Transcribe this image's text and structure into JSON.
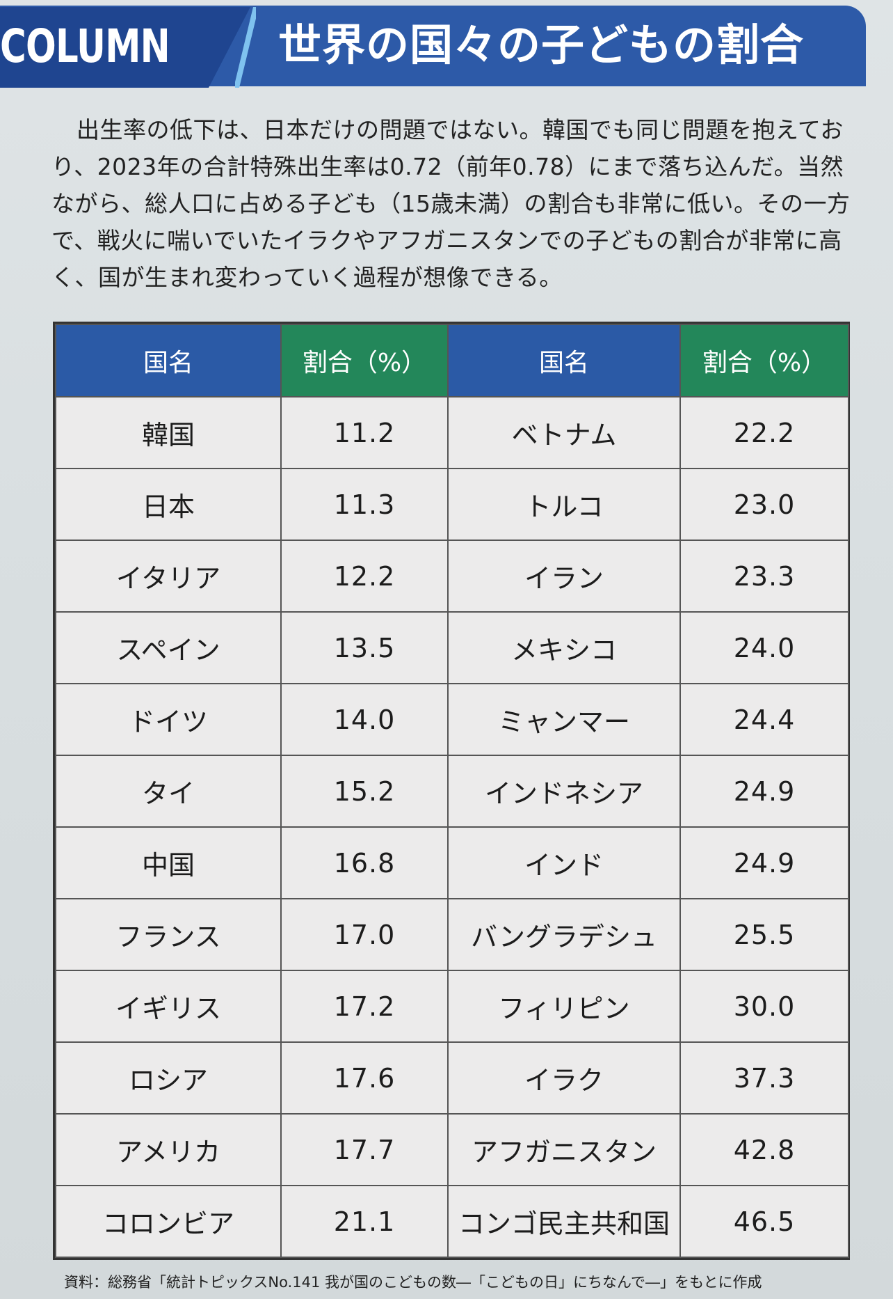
{
  "header": {
    "column_label": "COLUMN",
    "title": "世界の国々の子どもの割合"
  },
  "body_text": "出生率の低下は、日本だけの問題ではない。韓国でも同じ問題を抱えており、2023年の合計特殊出生率は0.72（前年0.78）にまで落ち込んだ。当然ながら、総人口に占める子ども（15歳未満）の割合も非常に低い。その一方で、戦火に喘いでいたイラクやアフガニスタンでの子どもの割合が非常に高く、国が生まれ変わっていく過程が想像できる。",
  "table": {
    "headers": [
      "国名",
      "割合（%）",
      "国名",
      "割合（%）"
    ],
    "rows": [
      [
        "韓国",
        "11.2",
        "ベトナム",
        "22.2"
      ],
      [
        "日本",
        "11.3",
        "トルコ",
        "23.0"
      ],
      [
        "イタリア",
        "12.2",
        "イラン",
        "23.3"
      ],
      [
        "スペイン",
        "13.5",
        "メキシコ",
        "24.0"
      ],
      [
        "ドイツ",
        "14.0",
        "ミャンマー",
        "24.4"
      ],
      [
        "タイ",
        "15.2",
        "インドネシア",
        "24.9"
      ],
      [
        "中国",
        "16.8",
        "インド",
        "24.9"
      ],
      [
        "フランス",
        "17.0",
        "バングラデシュ",
        "25.5"
      ],
      [
        "イギリス",
        "17.2",
        "フィリピン",
        "30.0"
      ],
      [
        "ロシア",
        "17.6",
        "イラク",
        "37.3"
      ],
      [
        "アメリカ",
        "17.7",
        "アフガニスタン",
        "42.8"
      ],
      [
        "コロンビア",
        "21.1",
        "コンゴ民主共和国",
        "46.5"
      ]
    ]
  },
  "source": "資料：総務省「統計トピックスNo.141 我が国のこどもの数―「こどもの日」にちなんで―」をもとに作成",
  "colors": {
    "header_blue": "#2d5aa8",
    "header_dark": "#1f4590",
    "header_green": "#23875a"
  }
}
